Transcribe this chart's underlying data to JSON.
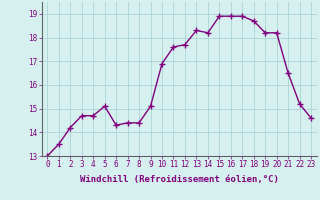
{
  "x": [
    0,
    1,
    2,
    3,
    4,
    5,
    6,
    7,
    8,
    9,
    10,
    11,
    12,
    13,
    14,
    15,
    16,
    17,
    18,
    19,
    20,
    21,
    22,
    23
  ],
  "y": [
    13.0,
    13.5,
    14.2,
    14.7,
    14.7,
    15.1,
    14.3,
    14.4,
    14.4,
    15.1,
    16.9,
    17.6,
    17.7,
    18.3,
    18.2,
    18.9,
    18.9,
    18.9,
    18.7,
    18.2,
    18.2,
    16.5,
    15.2,
    14.6
  ],
  "line_color": "#800080",
  "marker": "+",
  "marker_size": 4,
  "bg_color": "#d6f0f0",
  "grid_color": "#b0d8d8",
  "xlabel": "Windchill (Refroidissement éolien,°C)",
  "xlim": [
    -0.5,
    23.5
  ],
  "ylim": [
    13,
    19.5
  ],
  "yticks": [
    13,
    14,
    15,
    16,
    17,
    18,
    19
  ],
  "xticks": [
    0,
    1,
    2,
    3,
    4,
    5,
    6,
    7,
    8,
    9,
    10,
    11,
    12,
    13,
    14,
    15,
    16,
    17,
    18,
    19,
    20,
    21,
    22,
    23
  ],
  "tick_fontsize": 5.5,
  "xlabel_fontsize": 6.5,
  "line_width": 1.0,
  "label_color": "#800080",
  "tick_color": "#800080"
}
